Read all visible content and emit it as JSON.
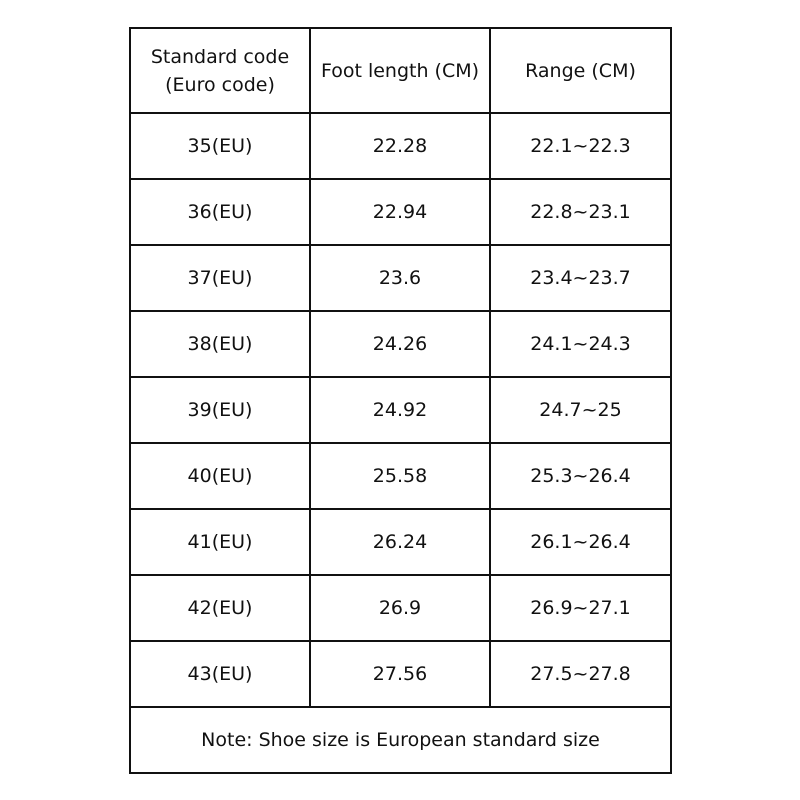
{
  "headers": {
    "code_line1": "Standard code",
    "code_line2": "(Euro code)",
    "foot_length": "Foot length (CM)",
    "range": "Range (CM)"
  },
  "rows": [
    {
      "code": "35(EU)",
      "length": "22.28",
      "range": "22.1~22.3"
    },
    {
      "code": "36(EU)",
      "length": "22.94",
      "range": "22.8~23.1"
    },
    {
      "code": "37(EU)",
      "length": "23.6",
      "range": "23.4~23.7"
    },
    {
      "code": "38(EU)",
      "length": "24.26",
      "range": "24.1~24.3"
    },
    {
      "code": "39(EU)",
      "length": "24.92",
      "range": "24.7~25"
    },
    {
      "code": "40(EU)",
      "length": "25.58",
      "range": "25.3~26.4"
    },
    {
      "code": "41(EU)",
      "length": "26.24",
      "range": "26.1~26.4"
    },
    {
      "code": "42(EU)",
      "length": "26.9",
      "range": "26.9~27.1"
    },
    {
      "code": "43(EU)",
      "length": "27.56",
      "range": "27.5~27.8"
    }
  ],
  "note": "Note: Shoe size is European standard size"
}
